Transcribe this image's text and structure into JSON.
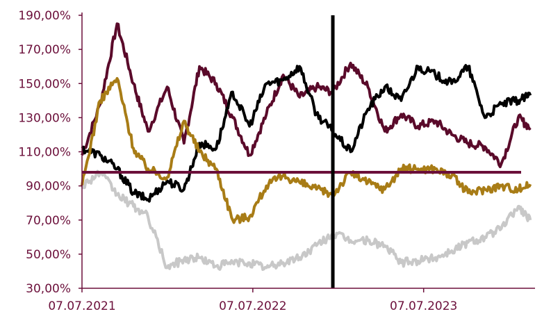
{
  "chart_data": {
    "type": "line",
    "title": "",
    "xlabel": "",
    "ylabel": "",
    "ylim": [
      30,
      190
    ],
    "y_ticks": [
      30,
      50,
      70,
      90,
      110,
      130,
      150,
      170,
      190
    ],
    "y_tick_labels": [
      "30,00%",
      "50,00%",
      "70,00%",
      "90,00%",
      "110,00%",
      "130,00%",
      "150,00%",
      "170,00%",
      "190,00%"
    ],
    "x_range": [
      "2021-07-07",
      "2024-03-01"
    ],
    "x_ticks": [
      "2021-07-07",
      "2022-07-07",
      "2023-07-07"
    ],
    "x_tick_labels": [
      "07.07.2021",
      "07.07.2022",
      "07.07.2023"
    ],
    "reference_line": {
      "y": 98,
      "color": "#6b0f3a"
    },
    "marker_line": {
      "x": "2022-12-25",
      "color": "#000000"
    },
    "legend": "none",
    "grid": false,
    "series": [
      {
        "color": "#5a0a2a",
        "x": [
          "2021-07-07",
          "2021-08-15",
          "2021-09-20",
          "2021-10-25",
          "2021-11-25",
          "2022-01-05",
          "2022-02-10",
          "2022-03-15",
          "2022-04-20",
          "2022-05-25",
          "2022-06-30",
          "2022-08-05",
          "2022-09-10",
          "2022-10-15",
          "2022-11-20",
          "2022-12-25",
          "2023-02-01",
          "2023-03-10",
          "2023-04-15",
          "2023-05-20",
          "2023-06-25",
          "2023-08-01",
          "2023-09-05",
          "2023-10-10",
          "2023-11-15",
          "2023-12-20",
          "2024-01-25",
          "2024-02-20"
        ],
        "values": [
          108,
          138,
          185,
          150,
          122,
          148,
          115,
          160,
          150,
          130,
          108,
          132,
          155,
          142,
          148,
          145,
          162,
          148,
          122,
          132,
          125,
          128,
          120,
          115,
          113,
          103,
          130,
          124
        ]
      },
      {
        "color": "#000000",
        "x": [
          "2021-07-07",
          "2021-08-15",
          "2021-09-20",
          "2021-10-25",
          "2021-11-25",
          "2022-01-05",
          "2022-02-10",
          "2022-03-15",
          "2022-04-20",
          "2022-05-25",
          "2022-06-30",
          "2022-08-05",
          "2022-09-10",
          "2022-10-15",
          "2022-11-20",
          "2022-12-25",
          "2023-02-01",
          "2023-03-10",
          "2023-04-15",
          "2023-05-20",
          "2023-06-25",
          "2023-08-01",
          "2023-09-05",
          "2023-10-10",
          "2023-11-15",
          "2023-12-20",
          "2024-01-25",
          "2024-02-20"
        ],
        "values": [
          112,
          108,
          100,
          86,
          82,
          93,
          88,
          115,
          112,
          145,
          125,
          150,
          152,
          160,
          132,
          122,
          110,
          135,
          148,
          140,
          160,
          155,
          150,
          160,
          130,
          138,
          140,
          143
        ]
      },
      {
        "color": "#a87c16",
        "x": [
          "2021-07-07",
          "2021-08-15",
          "2021-09-20",
          "2021-10-25",
          "2021-11-25",
          "2022-01-05",
          "2022-02-10",
          "2022-03-15",
          "2022-04-20",
          "2022-05-25",
          "2022-06-30",
          "2022-08-05",
          "2022-09-10",
          "2022-10-15",
          "2022-11-20",
          "2022-12-25",
          "2023-02-01",
          "2023-03-10",
          "2023-04-15",
          "2023-05-20",
          "2023-06-25",
          "2023-08-01",
          "2023-09-05",
          "2023-10-10",
          "2023-11-15",
          "2023-12-20",
          "2024-01-25",
          "2024-02-20"
        ],
        "values": [
          90,
          140,
          153,
          112,
          100,
          95,
          128,
          110,
          100,
          70,
          72,
          90,
          96,
          92,
          88,
          85,
          98,
          92,
          88,
          100,
          100,
          100,
          96,
          86,
          88,
          90,
          88,
          91
        ]
      },
      {
        "color": "#c8c8c8",
        "x": [
          "2021-07-07",
          "2021-08-15",
          "2021-09-20",
          "2021-10-25",
          "2021-11-25",
          "2022-01-05",
          "2022-02-10",
          "2022-03-15",
          "2022-04-20",
          "2022-05-25",
          "2022-06-30",
          "2022-08-05",
          "2022-09-10",
          "2022-10-15",
          "2022-11-20",
          "2022-12-25",
          "2023-02-01",
          "2023-03-10",
          "2023-04-15",
          "2023-05-20",
          "2023-06-25",
          "2023-08-01",
          "2023-09-05",
          "2023-10-10",
          "2023-11-15",
          "2023-12-20",
          "2024-01-25",
          "2024-02-20"
        ],
        "values": [
          90,
          98,
          85,
          78,
          72,
          42,
          47,
          48,
          43,
          45,
          45,
          42,
          45,
          48,
          55,
          62,
          58,
          58,
          55,
          45,
          46,
          48,
          52,
          57,
          60,
          65,
          78,
          70
        ]
      }
    ]
  }
}
